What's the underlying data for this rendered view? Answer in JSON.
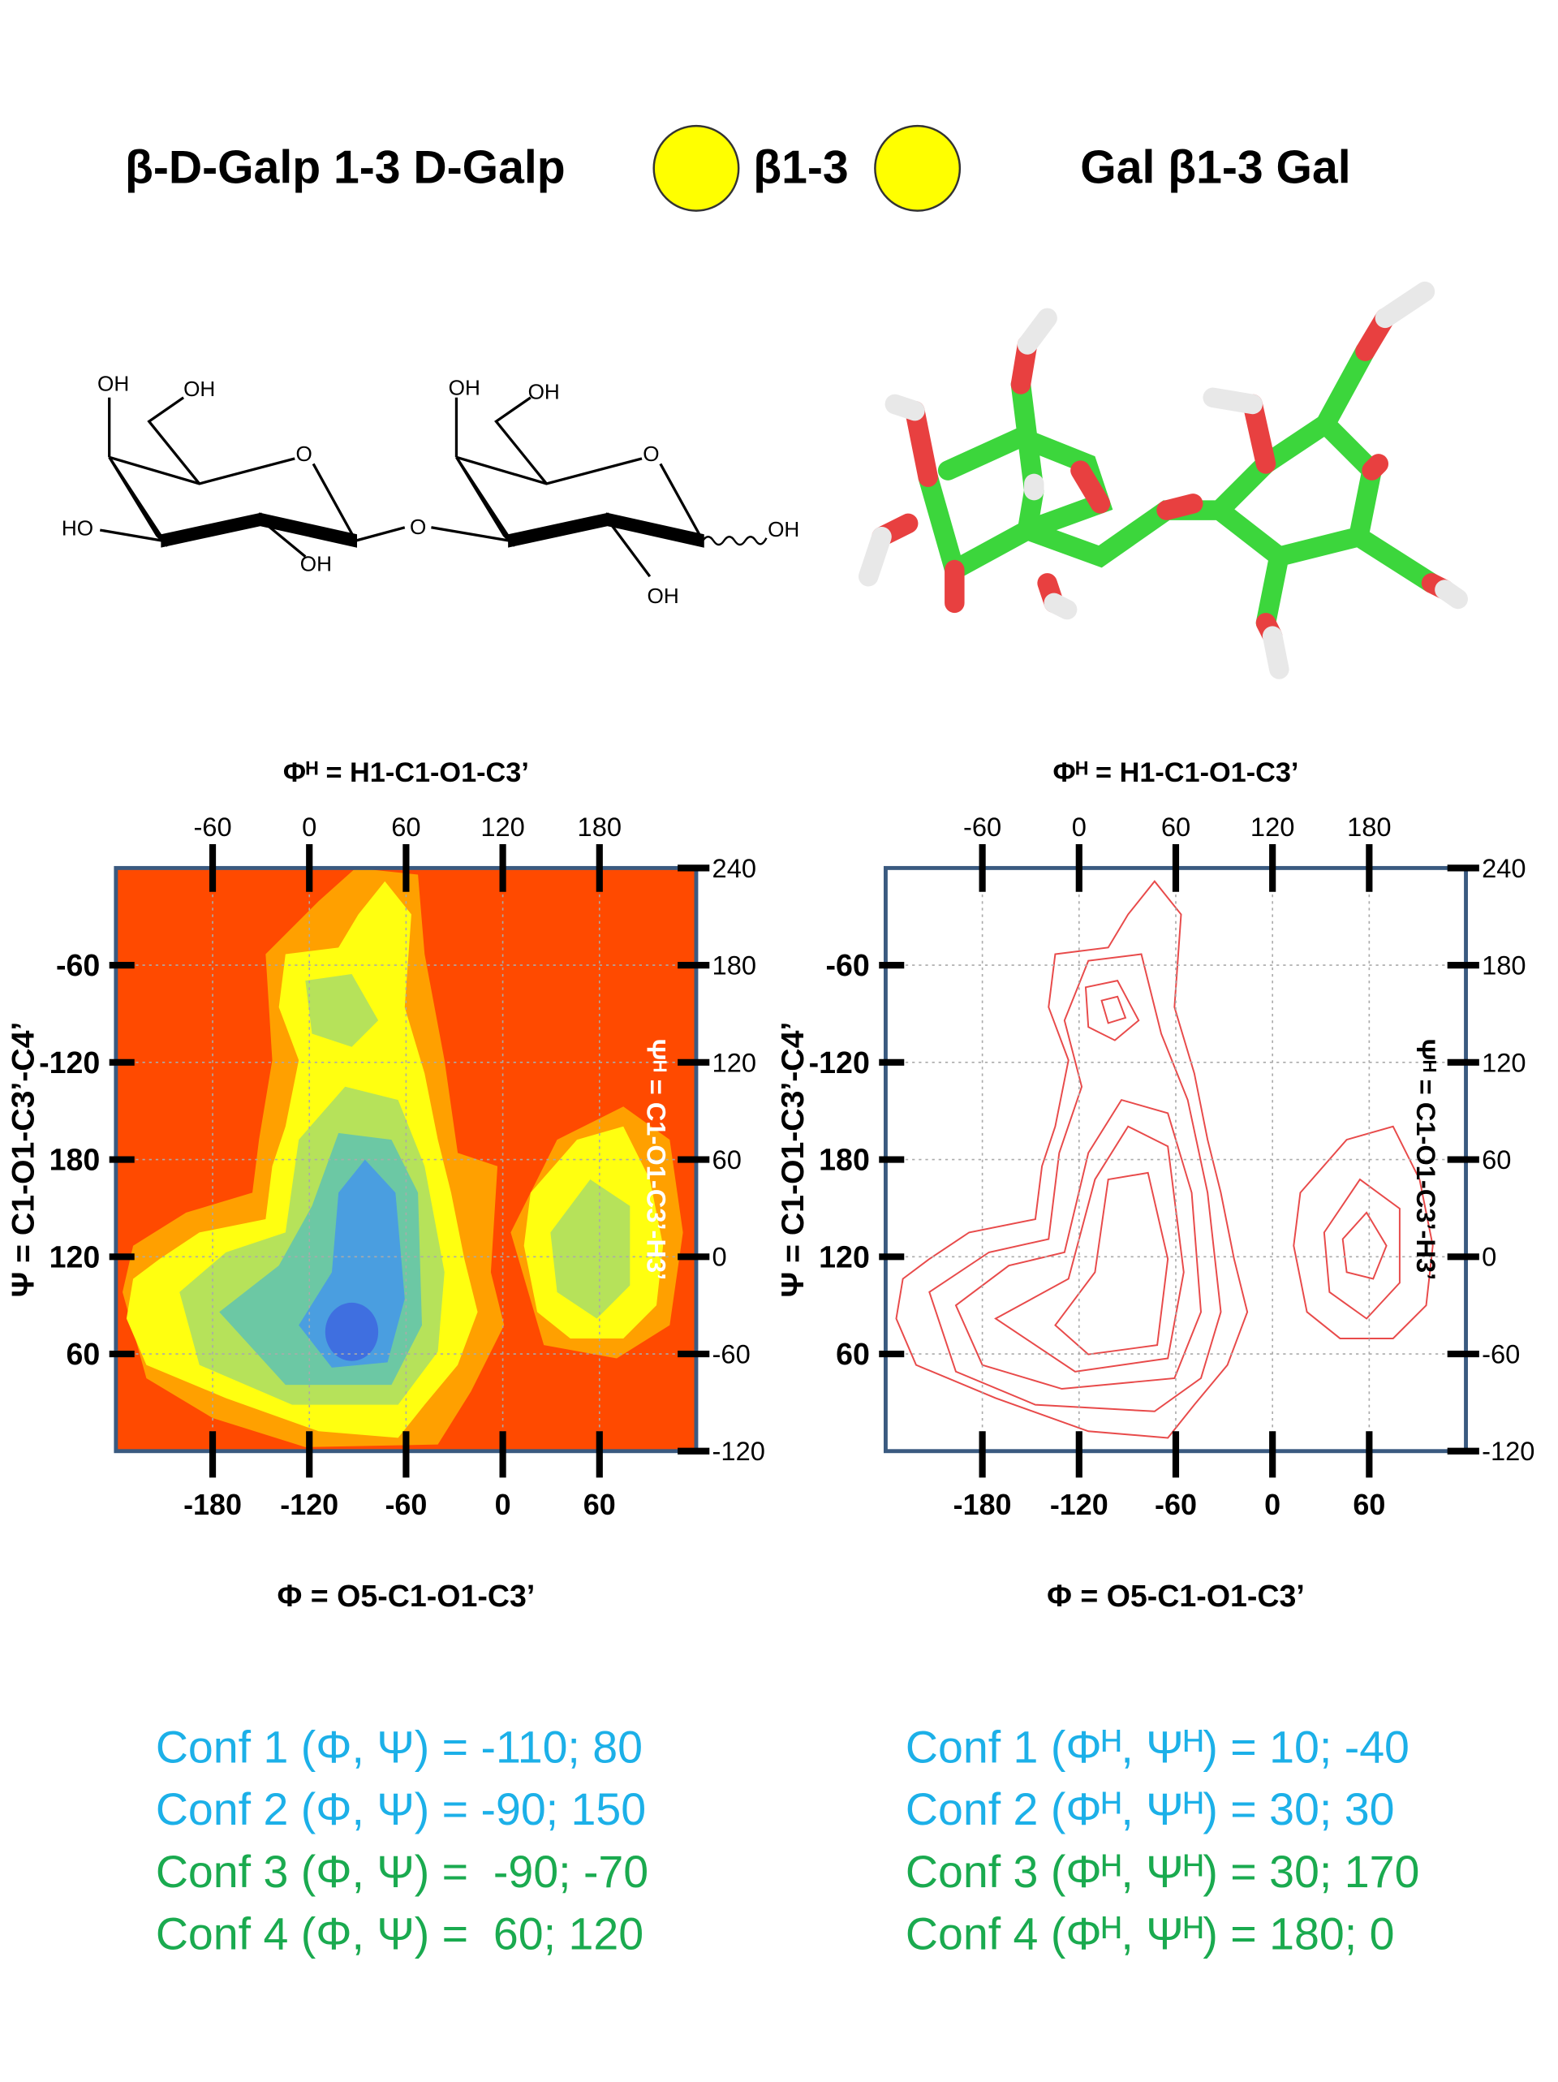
{
  "header": {
    "left_title": "β-D-Galp 1-3 D-Galp",
    "linkage": "β1-3",
    "right_title": "Gal β1-3 Gal"
  },
  "structure_2d": {
    "labels": [
      "OH",
      "OH",
      "O",
      "HO",
      "OH",
      "O",
      "OH",
      "OH",
      "O",
      "OH",
      "OH"
    ]
  },
  "chart_data": [
    {
      "type": "heatmap",
      "top_title": "Φᴴ = H1-C1-O1-C3’",
      "bottom_title": "Φ = O5-C1-O1-C3’",
      "left_title": "Ψ = C1-O1-C3’-C4’",
      "right_title": "Ψᴴ = C1-O1-C3’-H3’",
      "xlim": [
        -240,
        120
      ],
      "xticks": [
        -180,
        -120,
        -60,
        0,
        60
      ],
      "x2lim": [
        -120,
        240
      ],
      "x2ticks": [
        -60,
        0,
        60,
        120,
        180
      ],
      "ylim": [
        0,
        360
      ],
      "yticks": [
        60,
        120,
        180,
        {
          "value": 240,
          "label": "-120"
        },
        {
          "value": 300,
          "label": "-60"
        }
      ],
      "y2lim": [
        -120,
        240
      ],
      "y2ticks": [
        -120,
        -60,
        0,
        60,
        120,
        180,
        240
      ],
      "grid": true
    },
    {
      "type": "contour",
      "top_title": "Φᴴ = H1-C1-O1-C3’",
      "bottom_title": "Φ = O5-C1-O1-C3’",
      "left_title": "Ψ = C1-O1-C3’-C4’",
      "right_title": "Ψᴴ = C1-O1-C3’-H3’",
      "xlim": [
        -240,
        120
      ],
      "xticks": [
        -180,
        -120,
        -60,
        0,
        60
      ],
      "x2lim": [
        -120,
        240
      ],
      "x2ticks": [
        -60,
        0,
        60,
        120,
        180
      ],
      "ylim": [
        0,
        360
      ],
      "yticks": [
        60,
        120,
        180,
        {
          "value": 240,
          "label": "-120"
        },
        {
          "value": 300,
          "label": "-60"
        }
      ],
      "y2lim": [
        -120,
        240
      ],
      "y2ticks": [
        -120,
        -60,
        0,
        60,
        120,
        180,
        240
      ],
      "grid": true
    }
  ],
  "conformations": {
    "left": [
      "Conf 1 (Φ, Ψ) = -110; 80",
      "Conf 2 (Φ, Ψ) = -90; 150",
      "Conf 3 (Φ, Ψ) =  -90; -70",
      "Conf 4 (Φ, Ψ) =  60; 120"
    ],
    "right": [
      "Conf 1 (Φᴴ, Ψᴴ) = 10; -40",
      "Conf 2 (Φᴴ, Ψᴴ) = 30; 30",
      "Conf 3 (Φᴴ, Ψᴴ) = 30; 170",
      "Conf 4 (Φᴴ, Ψᴴ) = 180; 0"
    ]
  }
}
